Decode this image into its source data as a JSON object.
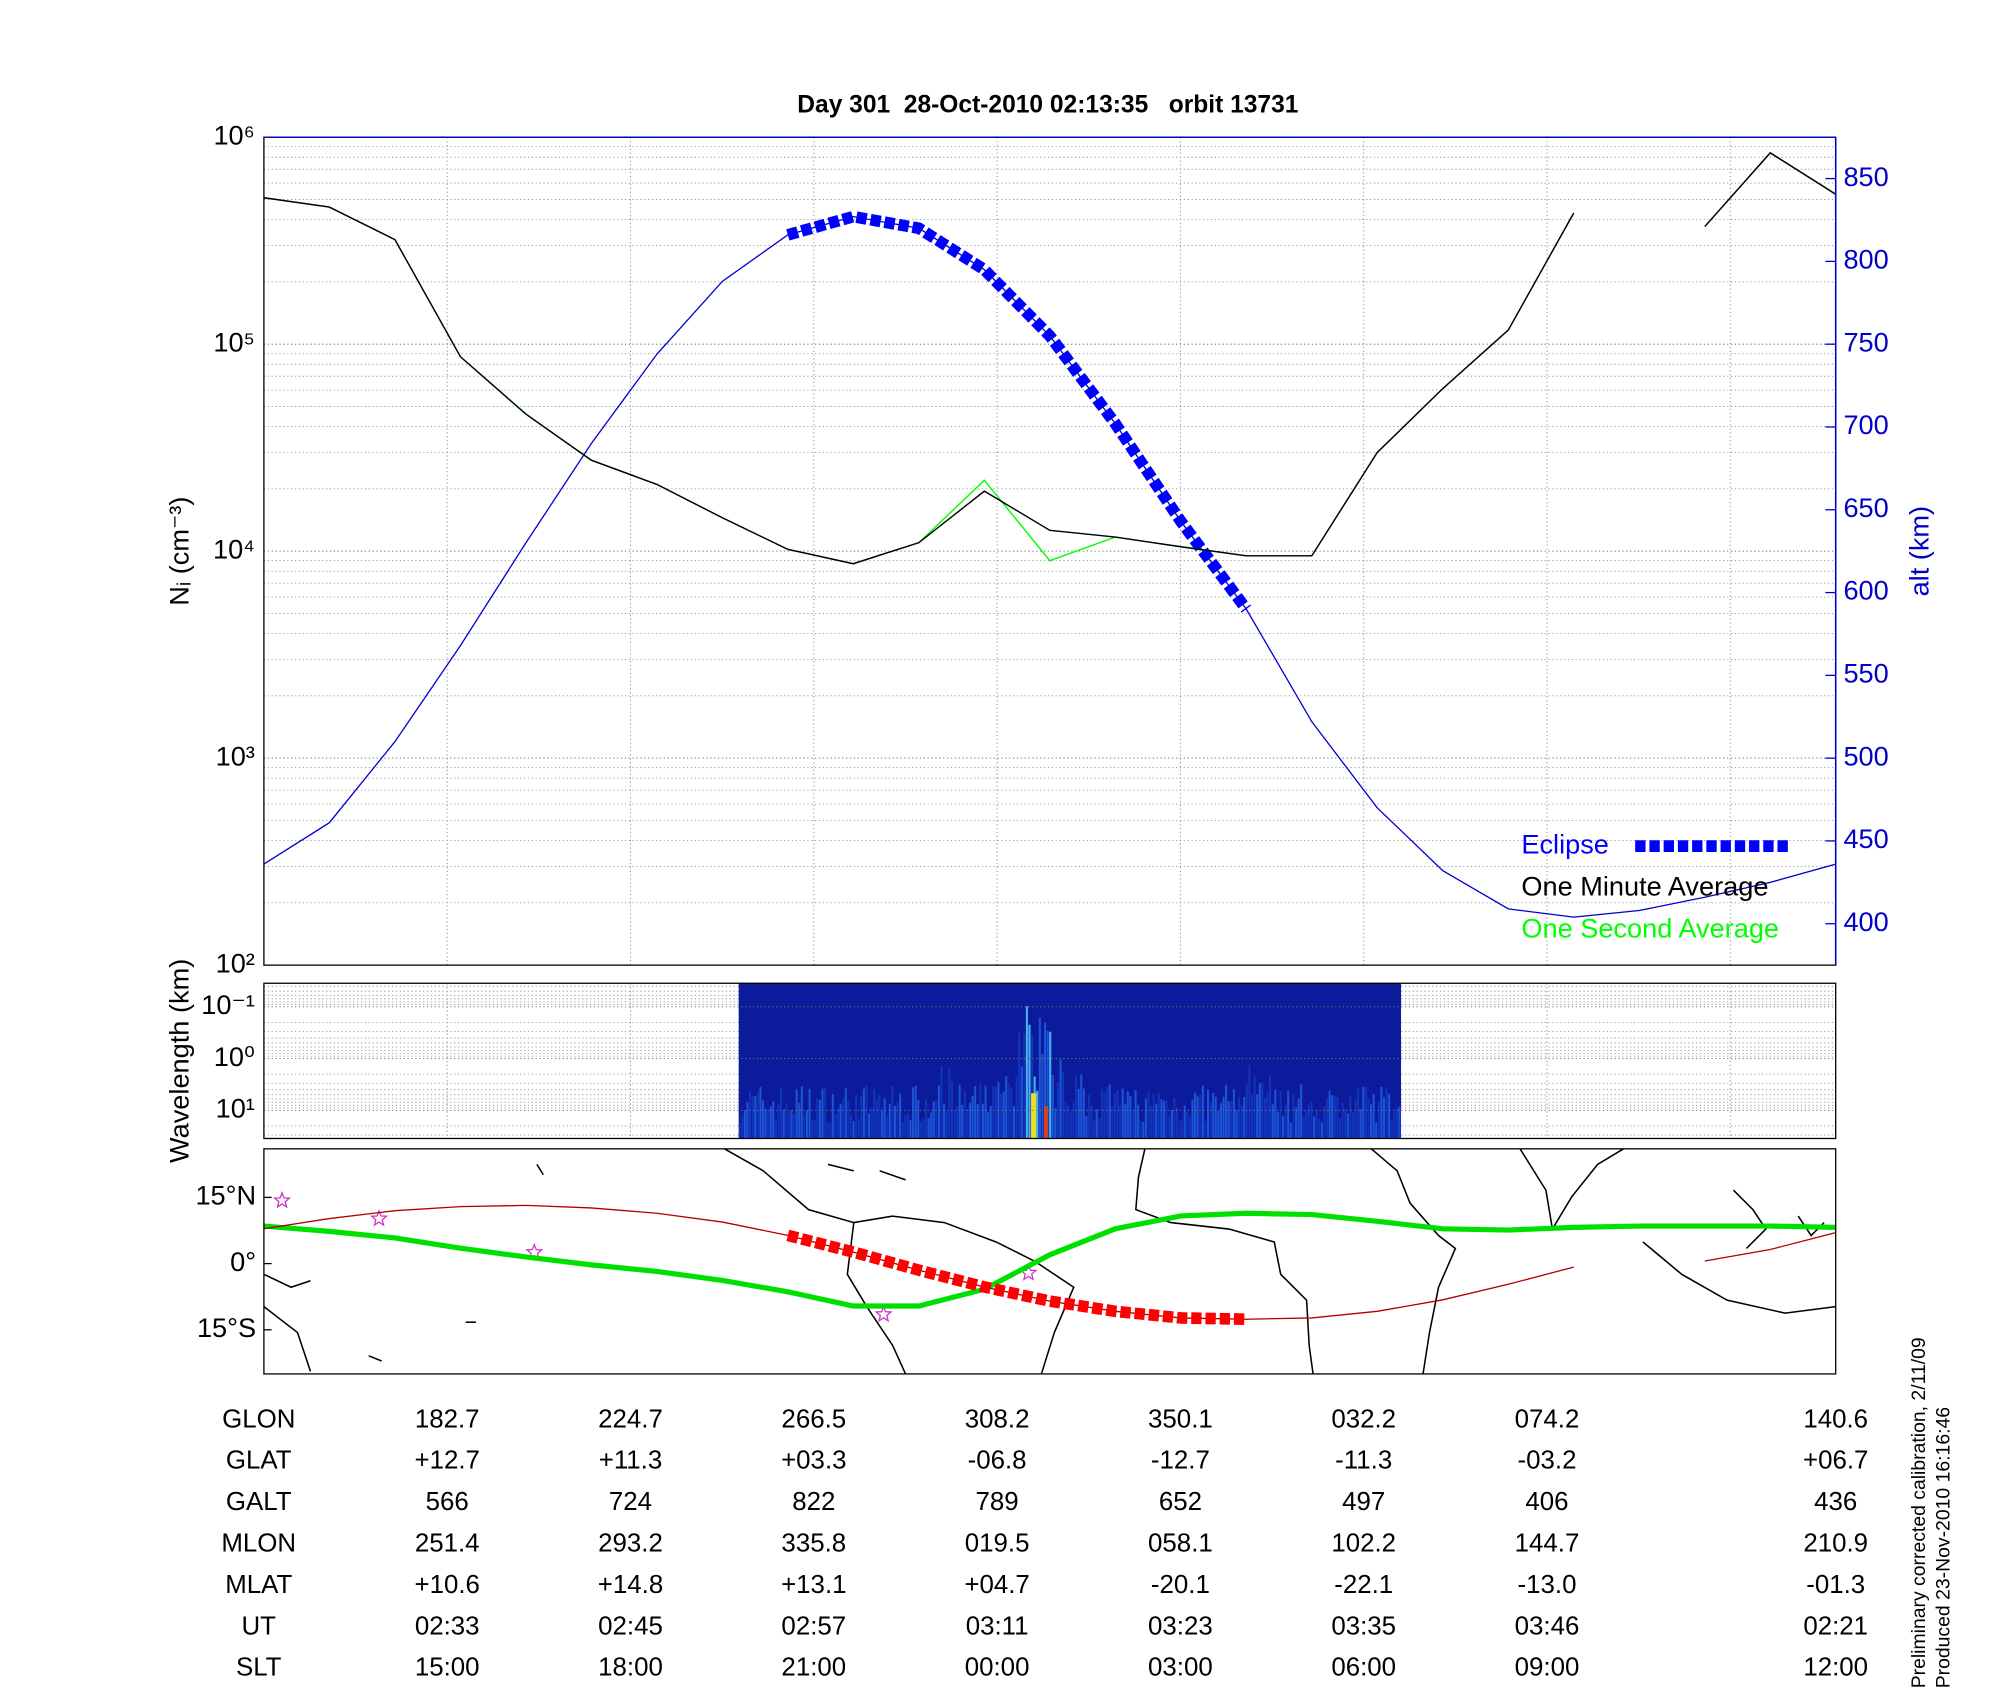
{
  "chart_data": [
    {
      "type": "line",
      "title": "Day 301  28-Oct-2010 02:13:35   orbit 13731",
      "ylabel": "Nᵢ (cm⁻³)",
      "y2label": "alt (km)",
      "ylog": true,
      "ylim": [
        100,
        1000000
      ],
      "yticks": [
        {
          "value": 100,
          "label": "10²"
        },
        {
          "value": 1000,
          "label": "10³"
        },
        {
          "value": 10000,
          "label": "10⁴"
        },
        {
          "value": 100000,
          "label": "10⁵"
        },
        {
          "value": 1000000,
          "label": "10⁶"
        }
      ],
      "y2lim": [
        375,
        875
      ],
      "y2ticks": [
        400,
        450,
        500,
        550,
        600,
        650,
        700,
        750,
        800,
        850
      ],
      "grid": true,
      "legend": "lower right",
      "series": [
        {
          "color": "#0000cc",
          "axis": "y2",
          "values": [
            436,
            461,
            510,
            568,
            630,
            690,
            744,
            788,
            816,
            827,
            820,
            795,
            755,
            702,
            643,
            590,
            522,
            470,
            432,
            409,
            404,
            408,
            416,
            425,
            436
          ]
        },
        {
          "name": "Eclipse",
          "color": "#0000ff",
          "axis": "y2",
          "style": "dashed",
          "values": [
            null,
            null,
            null,
            null,
            null,
            null,
            null,
            null,
            816,
            827,
            820,
            795,
            755,
            702,
            643,
            590,
            null,
            null,
            null,
            null,
            null,
            null,
            null,
            null,
            null
          ]
        },
        {
          "name": "One Second Average",
          "color": "#00ff00",
          "values": [
            510000,
            460000,
            320000,
            87000,
            46000,
            27500,
            21000,
            14500,
            10200,
            8700,
            11000,
            22000,
            9000,
            11700,
            10500,
            9500,
            9500,
            30000,
            61000,
            117000,
            430000,
            null,
            370000,
            840000,
            530000
          ]
        },
        {
          "name": "One Minute Average",
          "color": "#000000",
          "values": [
            510000,
            460000,
            320000,
            87000,
            46000,
            27500,
            21000,
            14500,
            10200,
            8700,
            11000,
            19500,
            12600,
            11700,
            10500,
            9500,
            9500,
            30000,
            61000,
            117000,
            430000,
            null,
            370000,
            840000,
            530000
          ]
        }
      ]
    },
    {
      "type": "spectrogram",
      "ylabel": "Wavelength (km)",
      "ylog": true,
      "yreverse": true,
      "ylim": [
        0.035,
        35
      ],
      "yticks": [
        {
          "value": 0.1,
          "label": "10⁻¹"
        },
        {
          "value": 1,
          "label": "10⁰"
        },
        {
          "value": 10,
          "label": "10¹"
        }
      ]
    },
    {
      "type": "map",
      "ylim": [
        -25,
        26
      ],
      "yticks": [
        {
          "value": 15,
          "label": "15°N"
        },
        {
          "value": 0,
          "label": "0°"
        },
        {
          "value": -15,
          "label": "15°S"
        }
      ],
      "series": [
        {
          "color": "#00e000",
          "values": [
            8.5,
            7.3,
            5.8,
            3.5,
            1.5,
            -0.3,
            -1.8,
            -3.8,
            -6.4,
            -9.6,
            -9.6,
            -5.8,
            2.0,
            7.9,
            10.8,
            11.4,
            11.1,
            9.6,
            7.9,
            7.6,
            8.2,
            8.5,
            8.5,
            8.5,
            8.2
          ]
        },
        {
          "color": "#b00000",
          "values": [
            7.9,
            10.2,
            12.0,
            12.9,
            13.2,
            12.6,
            11.4,
            9.4,
            6.4,
            2.6,
            -1.5,
            -5.3,
            -8.5,
            -10.8,
            -12.3,
            -12.6,
            -12.3,
            -10.8,
            -8.2,
            -4.7,
            -0.8,
            null,
            0.6,
            3.2,
            7.0
          ]
        },
        {
          "color": "#ff0000",
          "style": "dashed",
          "values": [
            null,
            null,
            null,
            null,
            null,
            null,
            null,
            null,
            6.4,
            2.6,
            -1.5,
            -5.3,
            -8.5,
            -10.8,
            -12.3,
            -12.6,
            null,
            null,
            null,
            null,
            null,
            null,
            null,
            null,
            null
          ]
        }
      ]
    }
  ],
  "table": {
    "rows": [
      {
        "label": "GLON",
        "values": [
          "182.7",
          "224.7",
          "266.5",
          "308.2",
          "350.1",
          "032.2",
          "074.2",
          "140.6"
        ]
      },
      {
        "label": "GLAT",
        "values": [
          "+12.7",
          "+11.3",
          "+03.3",
          "-06.8",
          "-12.7",
          "-11.3",
          "-03.2",
          "+06.7"
        ]
      },
      {
        "label": "GALT",
        "values": [
          "566",
          "724",
          "822",
          "789",
          "652",
          "497",
          "406",
          "436"
        ]
      },
      {
        "label": "MLON",
        "values": [
          "251.4",
          "293.2",
          "335.8",
          "019.5",
          "058.1",
          "102.2",
          "144.7",
          "210.9"
        ]
      },
      {
        "label": "MLAT",
        "values": [
          "+10.6",
          "+14.8",
          "+13.1",
          "+04.7",
          "-20.1",
          "-22.1",
          "-13.0",
          "-01.3"
        ]
      },
      {
        "label": "UT",
        "values": [
          "02:33",
          "02:45",
          "02:57",
          "03:11",
          "03:23",
          "03:35",
          "03:46",
          "02:21"
        ]
      },
      {
        "label": "SLT",
        "values": [
          "15:00",
          "18:00",
          "21:00",
          "00:00",
          "03:00",
          "06:00",
          "09:00",
          "12:00"
        ]
      }
    ]
  },
  "notes": [
    "Preliminary corrected calibration, 2/11/09",
    "Produced 23-Nov-2010 16:16:46"
  ]
}
